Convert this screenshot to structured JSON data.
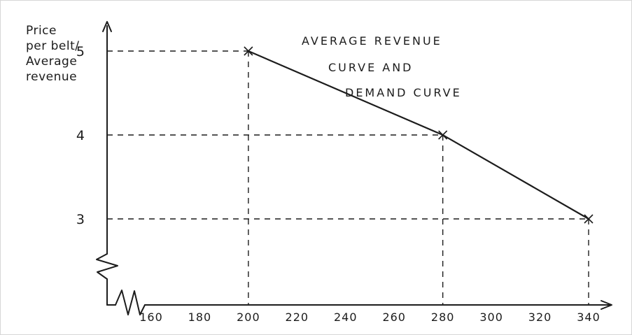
{
  "figure": {
    "background": "#ffffff",
    "ink_color": "#1c1c1c"
  },
  "chart_data": {
    "type": "line",
    "style": "hand-drawn",
    "title": "AVERAGE REVENUE CURVE AND DEMAND CURVE",
    "title_lines": [
      "AVERAGE REVENUE",
      "CURVE AND",
      "DEMAND CURVE"
    ],
    "ylabel": "Price per belt/ Average revenue",
    "ylabel_lines": [
      "Price",
      "per belt/",
      "Average",
      "revenue"
    ],
    "xlabel": "",
    "series": [
      {
        "name": "Average revenue / demand curve",
        "marker": "x",
        "points": [
          {
            "x": 200,
            "y": 5
          },
          {
            "x": 280,
            "y": 4
          },
          {
            "x": 340,
            "y": 3
          }
        ]
      }
    ],
    "x_ticks": [
      160,
      180,
      200,
      220,
      240,
      260,
      280,
      300,
      320,
      340
    ],
    "y_ticks": [
      3,
      4,
      5
    ],
    "xlim": [
      160,
      345
    ],
    "ylim": [
      3,
      5
    ],
    "axis_breaks": {
      "x_axis": true,
      "y_axis": true
    },
    "dashed_guides": true,
    "grid": false,
    "legend": "none"
  }
}
